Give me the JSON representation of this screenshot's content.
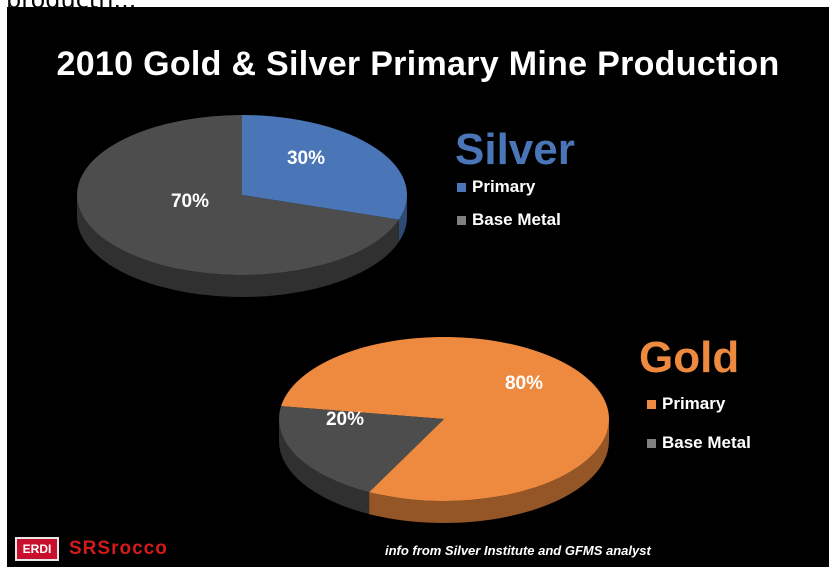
{
  "page": {
    "cut_caption": "productn..."
  },
  "chart_data": [
    {
      "type": "pie",
      "title": "2010 Gold & Silver Primary Mine Production",
      "name": "Silver",
      "slices": [
        {
          "label": "Primary",
          "value": 30,
          "display": "30%",
          "color": "#4a76b8"
        },
        {
          "label": "Base Metal",
          "value": 70,
          "display": "70%",
          "color": "#4d4d4d"
        }
      ]
    },
    {
      "type": "pie",
      "name": "Gold",
      "slices": [
        {
          "label": "Primary",
          "value": 80,
          "display": "80%",
          "color": "#ee8a3f"
        },
        {
          "label": "Base Metal",
          "value": 20,
          "display": "20%",
          "color": "#4d4d4d"
        }
      ]
    }
  ],
  "legend_title_colors": {
    "silver": "#4a76b8",
    "gold": "#ee8a3f"
  },
  "footer": {
    "logo_badge": "ERDI",
    "logo_text": "SRSrocco",
    "source": "info from Silver Institute and GFMS analyst"
  }
}
